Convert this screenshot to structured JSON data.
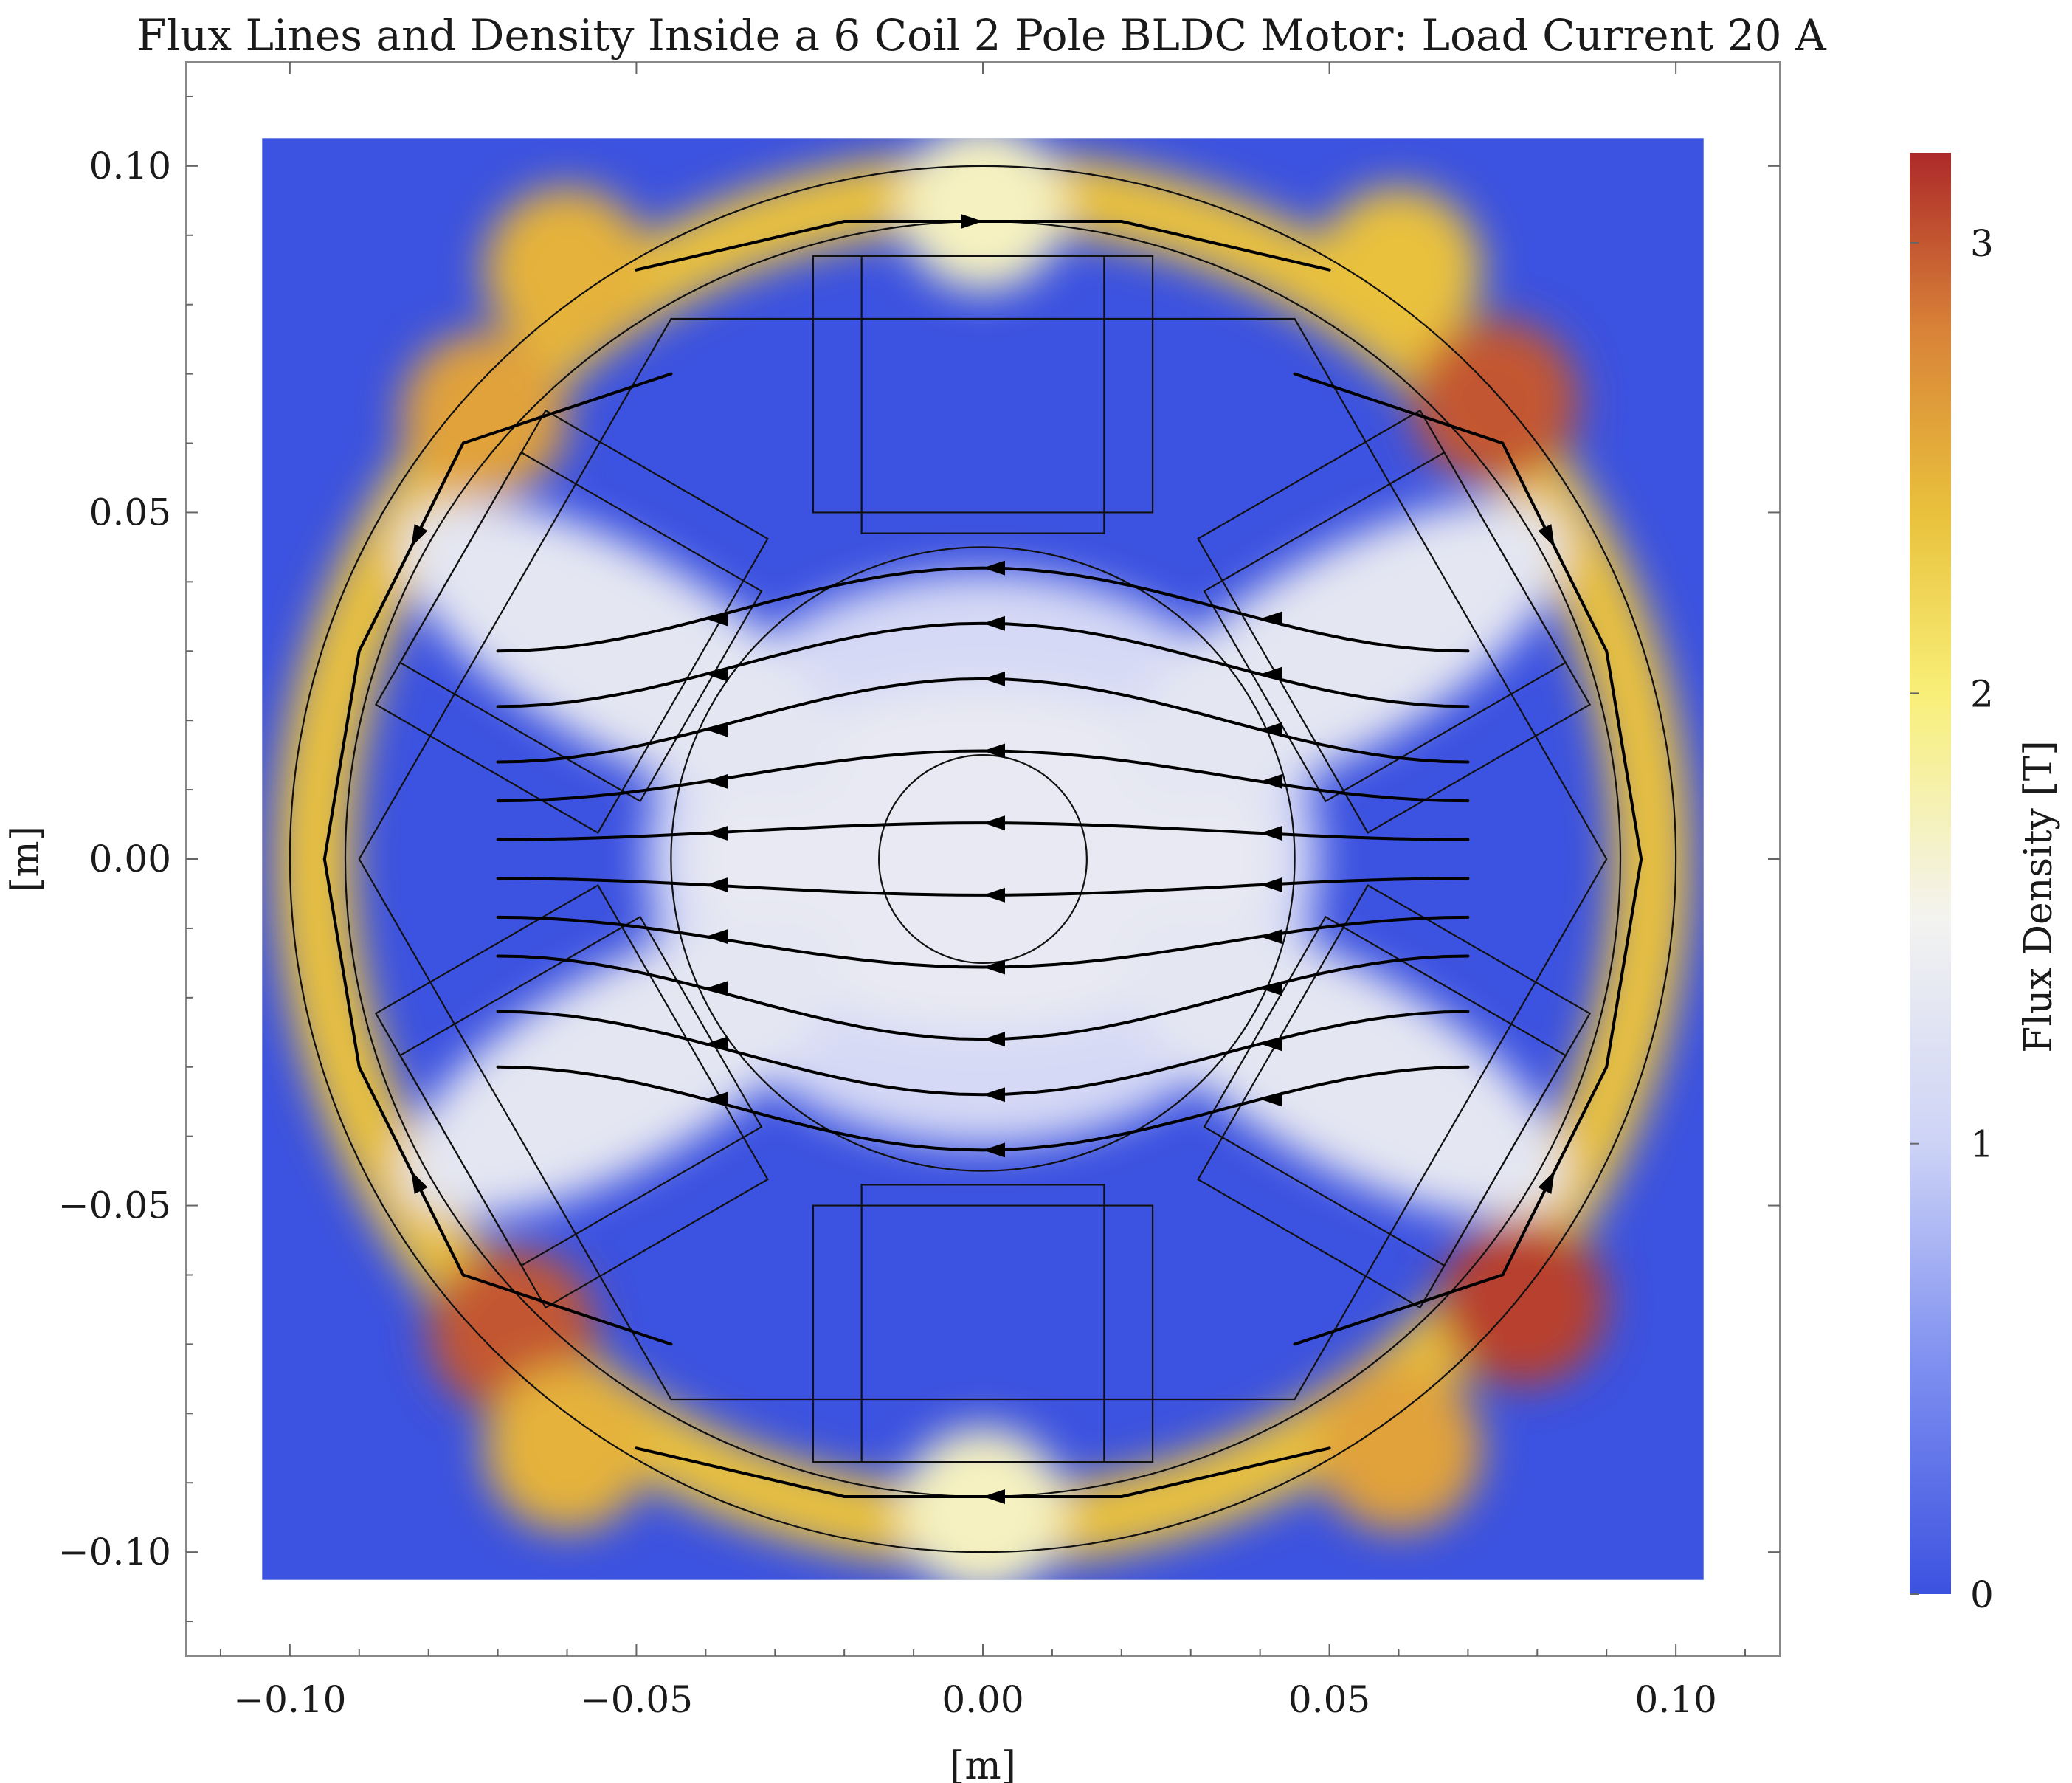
{
  "chart_data": {
    "type": "heatmap",
    "title": "Flux Lines and Density Inside a 6 Coil 2 Pole BLDC Motor: Load Current 20 A",
    "xlabel": "[m]",
    "ylabel": "[m]",
    "xlim": [
      -0.115,
      0.115
    ],
    "ylim": [
      -0.115,
      0.115
    ],
    "data_extent": [
      -0.104,
      0.104
    ],
    "x_ticks": [
      -0.1,
      -0.05,
      0.0,
      0.05,
      0.1
    ],
    "x_tick_labels": [
      "−0.10",
      "−0.05",
      "0.00",
      "0.05",
      "0.10"
    ],
    "y_ticks": [
      -0.1,
      -0.05,
      0.0,
      0.05,
      0.1
    ],
    "y_tick_labels": [
      "−0.10",
      "−0.05",
      "0.00",
      "0.05",
      "0.10"
    ],
    "colorbar": {
      "label": "Flux Density [T]",
      "range": [
        0,
        3.2
      ],
      "ticks": [
        0,
        1,
        2,
        3
      ],
      "tick_labels": [
        "0",
        "1",
        "2",
        "3"
      ],
      "stops": [
        {
          "value": 0.0,
          "color": "#3c52e0"
        },
        {
          "value": 0.5,
          "color": "#7d8ef0"
        },
        {
          "value": 1.0,
          "color": "#cdd3f6"
        },
        {
          "value": 1.5,
          "color": "#f3f3f0"
        },
        {
          "value": 2.0,
          "color": "#f8ef78"
        },
        {
          "value": 2.4,
          "color": "#e9c13c"
        },
        {
          "value": 2.8,
          "color": "#d98438"
        },
        {
          "value": 3.2,
          "color": "#ad2a2a"
        }
      ]
    },
    "geometry": {
      "stator_outer_radius": 0.1,
      "stator_inner_radius": 0.092,
      "stator_polygon_radius": 0.09,
      "rotor_radius": 0.045,
      "shaft_radius": 0.015,
      "slot_angles_deg": [
        90,
        150,
        210,
        270,
        330,
        30
      ],
      "tooth_halfwidth": 0.0175,
      "tooth_inner_r": 0.047,
      "tooth_outer_r": 0.087,
      "coil_inner_r": 0.05,
      "coil_outer_r": 0.087,
      "coil_inner_off": 0.0175,
      "coil_outer_off": 0.0245
    },
    "field_bands": [
      {
        "range": [
          0.093,
          0.1
        ],
        "value": 2.4,
        "description": "stator back iron"
      },
      {
        "range": [
          0.0,
          0.045
        ],
        "value": 1.1,
        "description": "rotor"
      }
    ],
    "hotspots": [
      {
        "x": 0.0,
        "y": 0.094,
        "value": 1.7
      },
      {
        "x": 0.0,
        "y": -0.094,
        "value": 1.7
      },
      {
        "x": -0.068,
        "y": -0.068,
        "value": 3.0
      },
      {
        "x": 0.078,
        "y": -0.064,
        "value": 3.1
      },
      {
        "x": 0.074,
        "y": 0.066,
        "value": 3.0
      },
      {
        "x": -0.072,
        "y": 0.064,
        "value": 2.6
      },
      {
        "x": -0.06,
        "y": 0.085,
        "value": 2.5
      },
      {
        "x": 0.06,
        "y": 0.085,
        "value": 2.4
      },
      {
        "x": -0.06,
        "y": -0.085,
        "value": 2.5
      },
      {
        "x": 0.06,
        "y": -0.085,
        "value": 2.6
      }
    ],
    "teeth_field": [
      {
        "angle_deg": 150,
        "value": 1.3
      },
      {
        "angle_deg": 210,
        "value": 1.3
      },
      {
        "angle_deg": 330,
        "value": 1.3
      },
      {
        "angle_deg": 30,
        "value": 1.3
      }
    ],
    "flux_lines": {
      "rotor_rows_y": [
        -0.036,
        -0.028,
        -0.02,
        -0.012,
        -0.004,
        0.004,
        0.012,
        0.02,
        0.028,
        0.036
      ],
      "direction": "right-to-left through rotor, returning via stator teeth",
      "return_paths": [
        {
          "points": [
            [
              -0.045,
              -0.07
            ],
            [
              -0.075,
              -0.06
            ],
            [
              -0.09,
              -0.03
            ],
            [
              -0.095,
              0.0
            ]
          ]
        },
        {
          "points": [
            [
              0.045,
              -0.07
            ],
            [
              0.075,
              -0.06
            ],
            [
              0.09,
              -0.03
            ],
            [
              0.095,
              0.0
            ]
          ]
        },
        {
          "points": [
            [
              -0.045,
              0.07
            ],
            [
              -0.075,
              0.06
            ],
            [
              -0.09,
              0.03
            ],
            [
              -0.095,
              0.0
            ]
          ]
        },
        {
          "points": [
            [
              0.045,
              0.07
            ],
            [
              0.075,
              0.06
            ],
            [
              0.09,
              0.03
            ],
            [
              0.095,
              0.0
            ]
          ]
        },
        {
          "points": [
            [
              0.05,
              -0.085
            ],
            [
              0.02,
              -0.092
            ],
            [
              -0.02,
              -0.092
            ],
            [
              -0.05,
              -0.085
            ]
          ]
        },
        {
          "points": [
            [
              -0.05,
              0.085
            ],
            [
              -0.02,
              0.092
            ],
            [
              0.02,
              0.092
            ],
            [
              0.05,
              0.085
            ]
          ]
        }
      ]
    }
  }
}
